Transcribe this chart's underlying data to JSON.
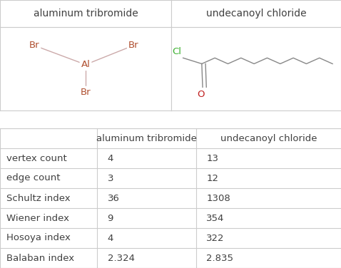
{
  "title1": "aluminum tribromide",
  "title2": "undecanoyl chloride",
  "rows": [
    {
      "label": "vertex count",
      "val1": "4",
      "val2": "13"
    },
    {
      "label": "edge count",
      "val1": "3",
      "val2": "12"
    },
    {
      "label": "Schultz index",
      "val1": "36",
      "val2": "1308"
    },
    {
      "label": "Wiener index",
      "val1": "9",
      "val2": "354"
    },
    {
      "label": "Hosoya index",
      "val1": "4",
      "val2": "322"
    },
    {
      "label": "Balaban index",
      "val1": "2.324",
      "val2": "2.835"
    }
  ],
  "mol1_color": "#b05030",
  "mol2_color_cl": "#3cb030",
  "mol2_color_o": "#c02020",
  "bond_color": "#ccaaaa",
  "bond_color2": "#aaaaaa",
  "background": "#ffffff",
  "border_color": "#cccccc",
  "text_color": "#404040",
  "font_size_title": 10,
  "font_size_table": 9.5,
  "gap_color": "#ffffff"
}
